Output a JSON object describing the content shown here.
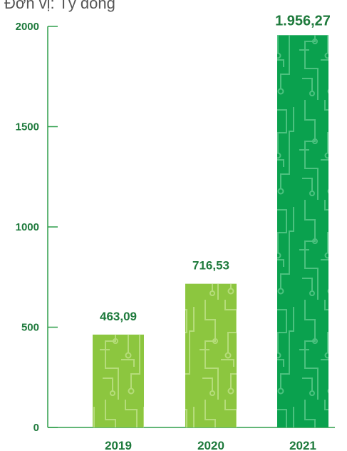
{
  "unit": "Đơn vị: Tỷ đồng",
  "colors": {
    "axis": "#2e9e4a",
    "text": "#1e7a3c",
    "bar_light": "#8cc63f",
    "bar_dark": "#0aa14e",
    "pattern_light": "#b5dc7a",
    "pattern_dark": "#4cc17f"
  },
  "chart_data": {
    "type": "bar",
    "title": "",
    "xlabel": "",
    "ylabel": "",
    "categories": [
      "2019",
      "2020",
      "2021"
    ],
    "values": [
      463.09,
      716.53,
      1956.27
    ],
    "value_labels": [
      "463,09",
      "716,53",
      "1.956,27"
    ],
    "highlight": [
      false,
      false,
      true
    ],
    "ylim": [
      0,
      2000
    ],
    "yticks": [
      0,
      500,
      1000,
      1500,
      2000
    ],
    "grid": false
  }
}
